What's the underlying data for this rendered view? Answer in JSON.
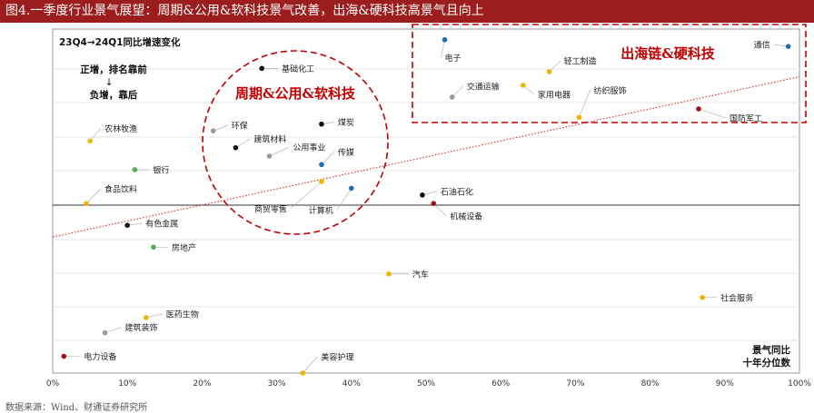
{
  "title": "图4.一季度行业景气展望：周期&公用&软科技景气改善，出海&硬科技高景气且向上",
  "source": "数据来源：Wind、财通证券研究所",
  "colors": {
    "title_bg": "#9c1d1d",
    "accent": "#c00000"
  },
  "chart_data": {
    "type": "scatter",
    "subtitle": "23Q4→24Q1同比增速变化",
    "legend_top": "正增，排名靠前",
    "legend_arrow": "↓",
    "legend_bottom": "负增，靠后",
    "xlabel": "景气同比\n十年分位数",
    "xlim": [
      0,
      100
    ],
    "ylim": [
      -10,
      10
    ],
    "x_ticks": [
      "0%",
      "10%",
      "20%",
      "30%",
      "40%",
      "50%",
      "60%",
      "70%",
      "80%",
      "90%",
      "100%"
    ],
    "grid": "horizontal",
    "zero_line_y": 0,
    "trend_line": {
      "from": [
        0,
        -1.9
      ],
      "to": [
        100,
        7.6
      ]
    },
    "annotations": [
      {
        "text": "周期&公用&软科技",
        "shape": "dashed-circle"
      },
      {
        "text": "出海链&硬科技",
        "shape": "dashed-rectangle"
      }
    ],
    "points": [
      {
        "label": "通信",
        "x": 98.5,
        "y": 9.4,
        "color": "#1f6fb5"
      },
      {
        "label": "电子",
        "x": 52.5,
        "y": 9.8,
        "color": "#1f6fb5"
      },
      {
        "label": "轻工制造",
        "x": 66.5,
        "y": 7.9,
        "color": "#f0b400"
      },
      {
        "label": "交通运输",
        "x": 53.5,
        "y": 6.4,
        "color": "#999999"
      },
      {
        "label": "家用电器",
        "x": 63,
        "y": 7.1,
        "color": "#f0b400"
      },
      {
        "label": "纺织服饰",
        "x": 70.5,
        "y": 5.2,
        "color": "#f0b400"
      },
      {
        "label": "国防军工",
        "x": 86.5,
        "y": 5.7,
        "color": "#a50f15"
      },
      {
        "label": "基础化工",
        "x": 28,
        "y": 8.1,
        "color": "#111111"
      },
      {
        "label": "煤炭",
        "x": 36,
        "y": 4.8,
        "color": "#111111"
      },
      {
        "label": "环保",
        "x": 21.5,
        "y": 4.4,
        "color": "#999999"
      },
      {
        "label": "建筑材料",
        "x": 24.5,
        "y": 3.4,
        "color": "#111111"
      },
      {
        "label": "公用事业",
        "x": 29,
        "y": 2.9,
        "color": "#999999"
      },
      {
        "label": "传媒",
        "x": 36,
        "y": 2.4,
        "color": "#1f6fb5"
      },
      {
        "label": "商贸零售",
        "x": 36,
        "y": 1.4,
        "color": "#f0b400"
      },
      {
        "label": "计算机",
        "x": 40,
        "y": 1,
        "color": "#1f6fb5"
      },
      {
        "label": "农林牧渔",
        "x": 5,
        "y": 3.8,
        "color": "#f0b400"
      },
      {
        "label": "银行",
        "x": 11,
        "y": 2.1,
        "color": "#4caf50"
      },
      {
        "label": "食品饮料",
        "x": 4.5,
        "y": 0.1,
        "color": "#f0b400"
      },
      {
        "label": "石油石化",
        "x": 49.5,
        "y": 0.6,
        "color": "#111111"
      },
      {
        "label": "机械设备",
        "x": 51,
        "y": 0.1,
        "color": "#a50f15"
      },
      {
        "label": "有色金属",
        "x": 10,
        "y": -1.2,
        "color": "#111111"
      },
      {
        "label": "房地产",
        "x": 13.5,
        "y": -2.5,
        "color": "#4caf50"
      },
      {
        "label": "汽车",
        "x": 45,
        "y": -4.1,
        "color": "#f0b400"
      },
      {
        "label": "社会服务",
        "x": 87,
        "y": -5.5,
        "color": "#f0b400"
      },
      {
        "label": "医药生物",
        "x": 12.5,
        "y": -6.7,
        "color": "#f0b400"
      },
      {
        "label": "建筑装饰",
        "x": 7,
        "y": -7.6,
        "color": "#999999"
      },
      {
        "label": "电力设备",
        "x": 1.5,
        "y": -9,
        "color": "#a50f15"
      },
      {
        "label": "美容护理",
        "x": 33.5,
        "y": -10,
        "color": "#f0b400"
      }
    ]
  }
}
